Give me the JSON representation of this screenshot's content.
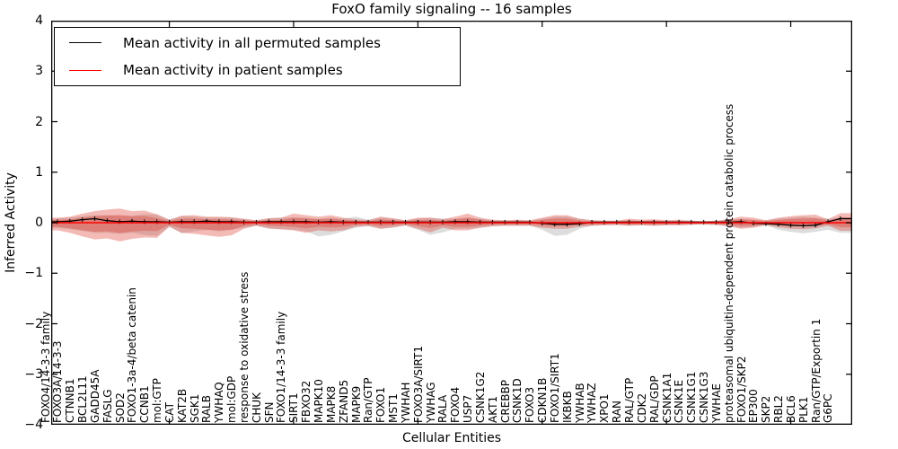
{
  "chart_data": {
    "type": "line",
    "title": "FoxO family signaling -- 16 samples",
    "xlabel": "Cellular Entities",
    "ylabel": "Inferred Activity",
    "ylim": [
      -4,
      4
    ],
    "yticks": [
      4,
      3,
      2,
      1,
      0,
      -1,
      -2,
      -3,
      -4
    ],
    "x_major_tick_values": [
      10,
      20,
      30,
      40,
      50,
      60
    ],
    "grid": false,
    "legend_position": "upper left",
    "frame_color": "#000000",
    "categories": [
      "FOXO4/14-3-3 family",
      "FOXO3A/14-3-3",
      "CTNNB1",
      "BCL2L11",
      "GADD45A",
      "FASLG",
      "SOD2",
      "FOXO1-3a-4/beta catenin",
      "CCNB1",
      "mol:GTP",
      "CAT",
      "KAT2B",
      "SGK1",
      "RALB",
      "YWHAQ",
      "mol:GDP",
      "response to oxidative stress",
      "CHUK",
      "SFN",
      "FOXO1/14-3-3 family",
      "SIRT1",
      "FBXO32",
      "MAPK10",
      "MAPK8",
      "ZFAND5",
      "MAPK9",
      "Ran/GTP",
      "FOXO1",
      "MST1",
      "YWHAH",
      "FOXO3A/SIRT1",
      "YWHAG",
      "RALA",
      "FOXO4",
      "USP7",
      "CSNK1G2",
      "AKT1",
      "CREBBP",
      "CSNK1D",
      "FOXO3",
      "CDKN1B",
      "FOXO1/SIRT1",
      "IKBKB",
      "YWHAB",
      "YWHAZ",
      "XPO1",
      "RAN",
      "RAL/GTP",
      "CDK2",
      "RAL/GDP",
      "CSNK1A1",
      "CSNK1E",
      "CSNK1G1",
      "CSNK1G3",
      "YWHAE",
      "proteasomal ubiquitin-dependent protein catabolic process",
      "FOXO1/SKP2",
      "EP300",
      "SKP2",
      "RBL2",
      "BCL6",
      "PLK1",
      "Ran/GTP/Exportin 1",
      "G6PC"
    ],
    "series": [
      {
        "name": "Mean activity in all permuted samples",
        "color": "#000000",
        "marker": "+",
        "values": [
          0.02,
          0.03,
          0.06,
          0.08,
          0.04,
          0.02,
          0.03,
          0.02,
          0.02,
          0.01,
          0.02,
          0.02,
          0.03,
          0.02,
          0.02,
          0.01,
          0.01,
          0.02,
          0.02,
          0.02,
          0.02,
          0.01,
          0.02,
          0.01,
          0.01,
          0.01,
          0.01,
          0.01,
          0.01,
          0.01,
          0.01,
          0.01,
          0.02,
          0.02,
          0.01,
          0.01,
          0.01,
          0.01,
          0.01,
          -0.01,
          -0.03,
          -0.03,
          -0.02,
          0.01,
          0.01,
          0.01,
          0.01,
          0.01,
          0.01,
          0.01,
          0.01,
          0.01,
          0.01,
          0.01,
          0.01,
          0.02,
          -0.01,
          -0.02,
          -0.03,
          -0.05,
          -0.06,
          -0.05,
          0.02,
          0.08
        ],
        "band": {
          "color": "#808080",
          "alpha": 0.27,
          "upper": [
            0.08,
            0.1,
            0.13,
            0.15,
            0.15,
            0.13,
            0.14,
            0.17,
            0.16,
            0.06,
            0.13,
            0.12,
            0.1,
            0.1,
            0.1,
            0.07,
            0.05,
            0.09,
            0.1,
            0.1,
            0.1,
            0.08,
            0.1,
            0.08,
            0.12,
            0.06,
            0.1,
            0.08,
            0.05,
            0.08,
            0.1,
            0.08,
            0.08,
            0.1,
            0.08,
            0.05,
            0.04,
            0.05,
            0.04,
            0.08,
            0.12,
            0.12,
            0.08,
            0.05,
            0.04,
            0.04,
            0.05,
            0.04,
            0.05,
            0.04,
            0.04,
            0.04,
            0.03,
            0.04,
            0.06,
            0.08,
            0.06,
            0.05,
            0.08,
            0.1,
            0.12,
            0.1,
            0.08,
            0.1
          ],
          "lower": [
            -0.1,
            -0.13,
            -0.16,
            -0.2,
            -0.2,
            -0.22,
            -0.2,
            -0.24,
            -0.26,
            -0.08,
            -0.21,
            -0.17,
            -0.14,
            -0.17,
            -0.14,
            -0.1,
            -0.06,
            -0.12,
            -0.13,
            -0.14,
            -0.17,
            -0.27,
            -0.24,
            -0.17,
            -0.1,
            -0.07,
            -0.12,
            -0.1,
            -0.06,
            -0.14,
            -0.24,
            -0.19,
            -0.12,
            -0.12,
            -0.1,
            -0.07,
            -0.06,
            -0.06,
            -0.06,
            -0.14,
            -0.26,
            -0.24,
            -0.12,
            -0.06,
            -0.05,
            -0.05,
            -0.06,
            -0.05,
            -0.06,
            -0.05,
            -0.05,
            -0.04,
            -0.04,
            -0.05,
            -0.07,
            -0.1,
            -0.08,
            -0.05,
            -0.14,
            -0.18,
            -0.21,
            -0.18,
            -0.14,
            -0.2
          ]
        }
      },
      {
        "name": "Mean activity in patient samples",
        "color": "#ff0000",
        "marker": "none",
        "values": [
          0,
          0,
          0,
          0,
          0,
          0,
          0,
          0,
          0,
          0,
          0,
          0,
          0,
          0,
          0,
          0,
          0,
          0,
          0,
          0,
          0,
          0,
          0,
          0,
          0,
          0,
          0,
          0,
          0,
          0,
          0,
          0,
          0,
          0,
          0,
          0,
          0,
          0,
          0,
          0,
          0,
          0,
          0,
          0,
          0,
          0,
          0,
          0,
          0,
          0,
          0,
          0,
          0,
          0,
          0,
          0,
          0,
          0,
          0,
          0,
          0,
          0,
          0,
          0
        ],
        "band": {
          "color": "#dd392e",
          "alpha": 0.35,
          "inner_scale": 0.55,
          "upper": [
            0.1,
            0.12,
            0.18,
            0.23,
            0.26,
            0.28,
            0.23,
            0.24,
            0.17,
            0.06,
            0.14,
            0.15,
            0.12,
            0.12,
            0.11,
            0.08,
            0.05,
            0.09,
            0.1,
            0.18,
            0.15,
            0.12,
            0.15,
            0.1,
            0.07,
            0.05,
            0.12,
            0.09,
            0.05,
            0.1,
            0.1,
            0.07,
            0.12,
            0.18,
            0.1,
            0.06,
            0.05,
            0.06,
            0.05,
            0.1,
            0.15,
            0.15,
            0.08,
            0.05,
            0.04,
            0.04,
            0.08,
            0.06,
            0.07,
            0.05,
            0.06,
            0.04,
            0.03,
            0.04,
            0.07,
            0.12,
            0.1,
            0.05,
            0.1,
            0.13,
            0.15,
            0.16,
            0.07,
            0.19
          ],
          "lower": [
            -0.15,
            -0.2,
            -0.27,
            -0.33,
            -0.31,
            -0.37,
            -0.32,
            -0.29,
            -0.3,
            -0.08,
            -0.2,
            -0.22,
            -0.25,
            -0.28,
            -0.25,
            -0.12,
            -0.06,
            -0.11,
            -0.13,
            -0.15,
            -0.2,
            -0.15,
            -0.17,
            -0.15,
            -0.08,
            -0.06,
            -0.12,
            -0.09,
            -0.05,
            -0.12,
            -0.19,
            -0.1,
            -0.15,
            -0.15,
            -0.1,
            -0.07,
            -0.06,
            -0.06,
            -0.06,
            -0.1,
            -0.12,
            -0.12,
            -0.08,
            -0.06,
            -0.05,
            -0.04,
            -0.06,
            -0.05,
            -0.06,
            -0.05,
            -0.05,
            -0.04,
            -0.03,
            -0.04,
            -0.07,
            -0.12,
            -0.1,
            -0.05,
            -0.09,
            -0.12,
            -0.13,
            -0.11,
            -0.06,
            -0.16
          ]
        }
      }
    ]
  }
}
